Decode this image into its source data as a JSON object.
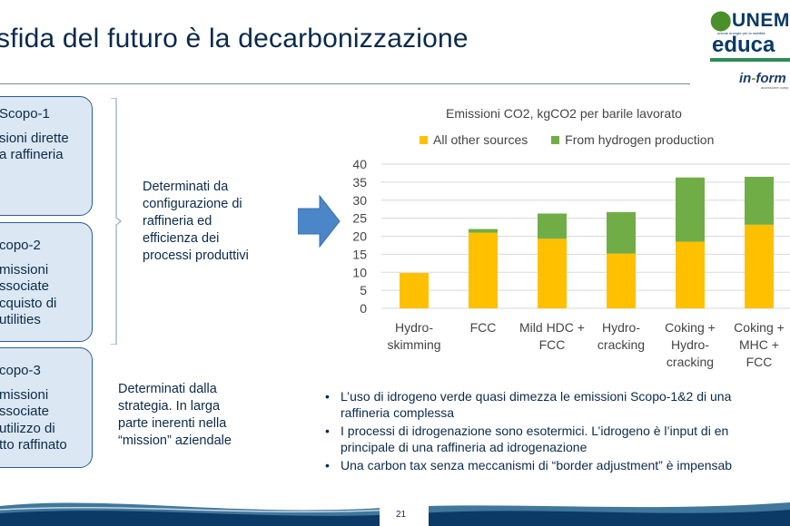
{
  "slide": {
    "title": "sfida del futuro è la decarbonizzazione",
    "page_number": "21"
  },
  "logos": {
    "unem_pre": "UN",
    "unem_o": "Ⓞ",
    "unem_main": "UNEM",
    "unem_tagline": "unione energie per la mobilità",
    "educa": "educa",
    "inform": "in-form",
    "inform_tagline": "accrescere comp"
  },
  "scopes": [
    {
      "heading": "Scopo-1",
      "lines": [
        "sioni dirette",
        "a raffineria"
      ]
    },
    {
      "heading": "copo-2",
      "lines": [
        "missioni",
        "ssociate",
        "cquisto di",
        "utilities"
      ]
    },
    {
      "heading": "copo-3",
      "lines": [
        "missioni",
        "ssociate",
        "utilizzo di",
        "tto raffinato"
      ]
    }
  ],
  "notes": {
    "scope12": [
      "Determinati da",
      "configurazione di",
      "raffineria ed",
      "efficienza dei",
      "processi produttivi"
    ],
    "scope3": [
      "Determinati dalla",
      "strategia. In larga",
      "parte inerenti nella",
      "“mission” aziendale"
    ]
  },
  "chart_data": {
    "type": "bar",
    "stacked": true,
    "title": "Emissioni CO2, kgCO2 per barile lavorato",
    "categories": [
      [
        "Hydro-",
        "skimming"
      ],
      [
        "FCC"
      ],
      [
        "Mild HDC +",
        "FCC"
      ],
      [
        "Hydro-",
        "cracking"
      ],
      [
        "Coking +",
        "Hydro-",
        "cracking"
      ],
      [
        "Coking +",
        "MHC +",
        "FCC"
      ]
    ],
    "series": [
      {
        "name": "All other sources",
        "color": "#FFC000",
        "values": [
          9.8,
          21.0,
          19.3,
          15.2,
          18.5,
          23.2
        ]
      },
      {
        "name": "From hydrogen production",
        "color": "#70AD47",
        "values": [
          0,
          1.0,
          7.0,
          11.5,
          17.8,
          13.3
        ]
      }
    ],
    "ylim": [
      0,
      40
    ],
    "yticks": [
      0,
      5,
      10,
      15,
      20,
      25,
      30,
      35,
      40
    ],
    "grid": true,
    "legend_position": "top"
  },
  "bullets": [
    [
      "L’uso di idrogeno verde quasi dimezza le emissioni Scopo-1&2 di una",
      "raffineria complessa"
    ],
    [
      "I processi di idrogenazione sono esotermici. L’idrogeno è l’input di en",
      "principale di una raffineria ad idrogenazione"
    ],
    [
      "Una carbon tax senza meccanismi di “border adjustment” è impensab"
    ]
  ],
  "colors": {
    "title": "#0b2a4a",
    "box_fill": "#dbe8f4",
    "box_border": "#2f5d8a",
    "arrow": "#4a86c8",
    "other_sources": "#FFC000",
    "hydrogen": "#70AD47"
  }
}
